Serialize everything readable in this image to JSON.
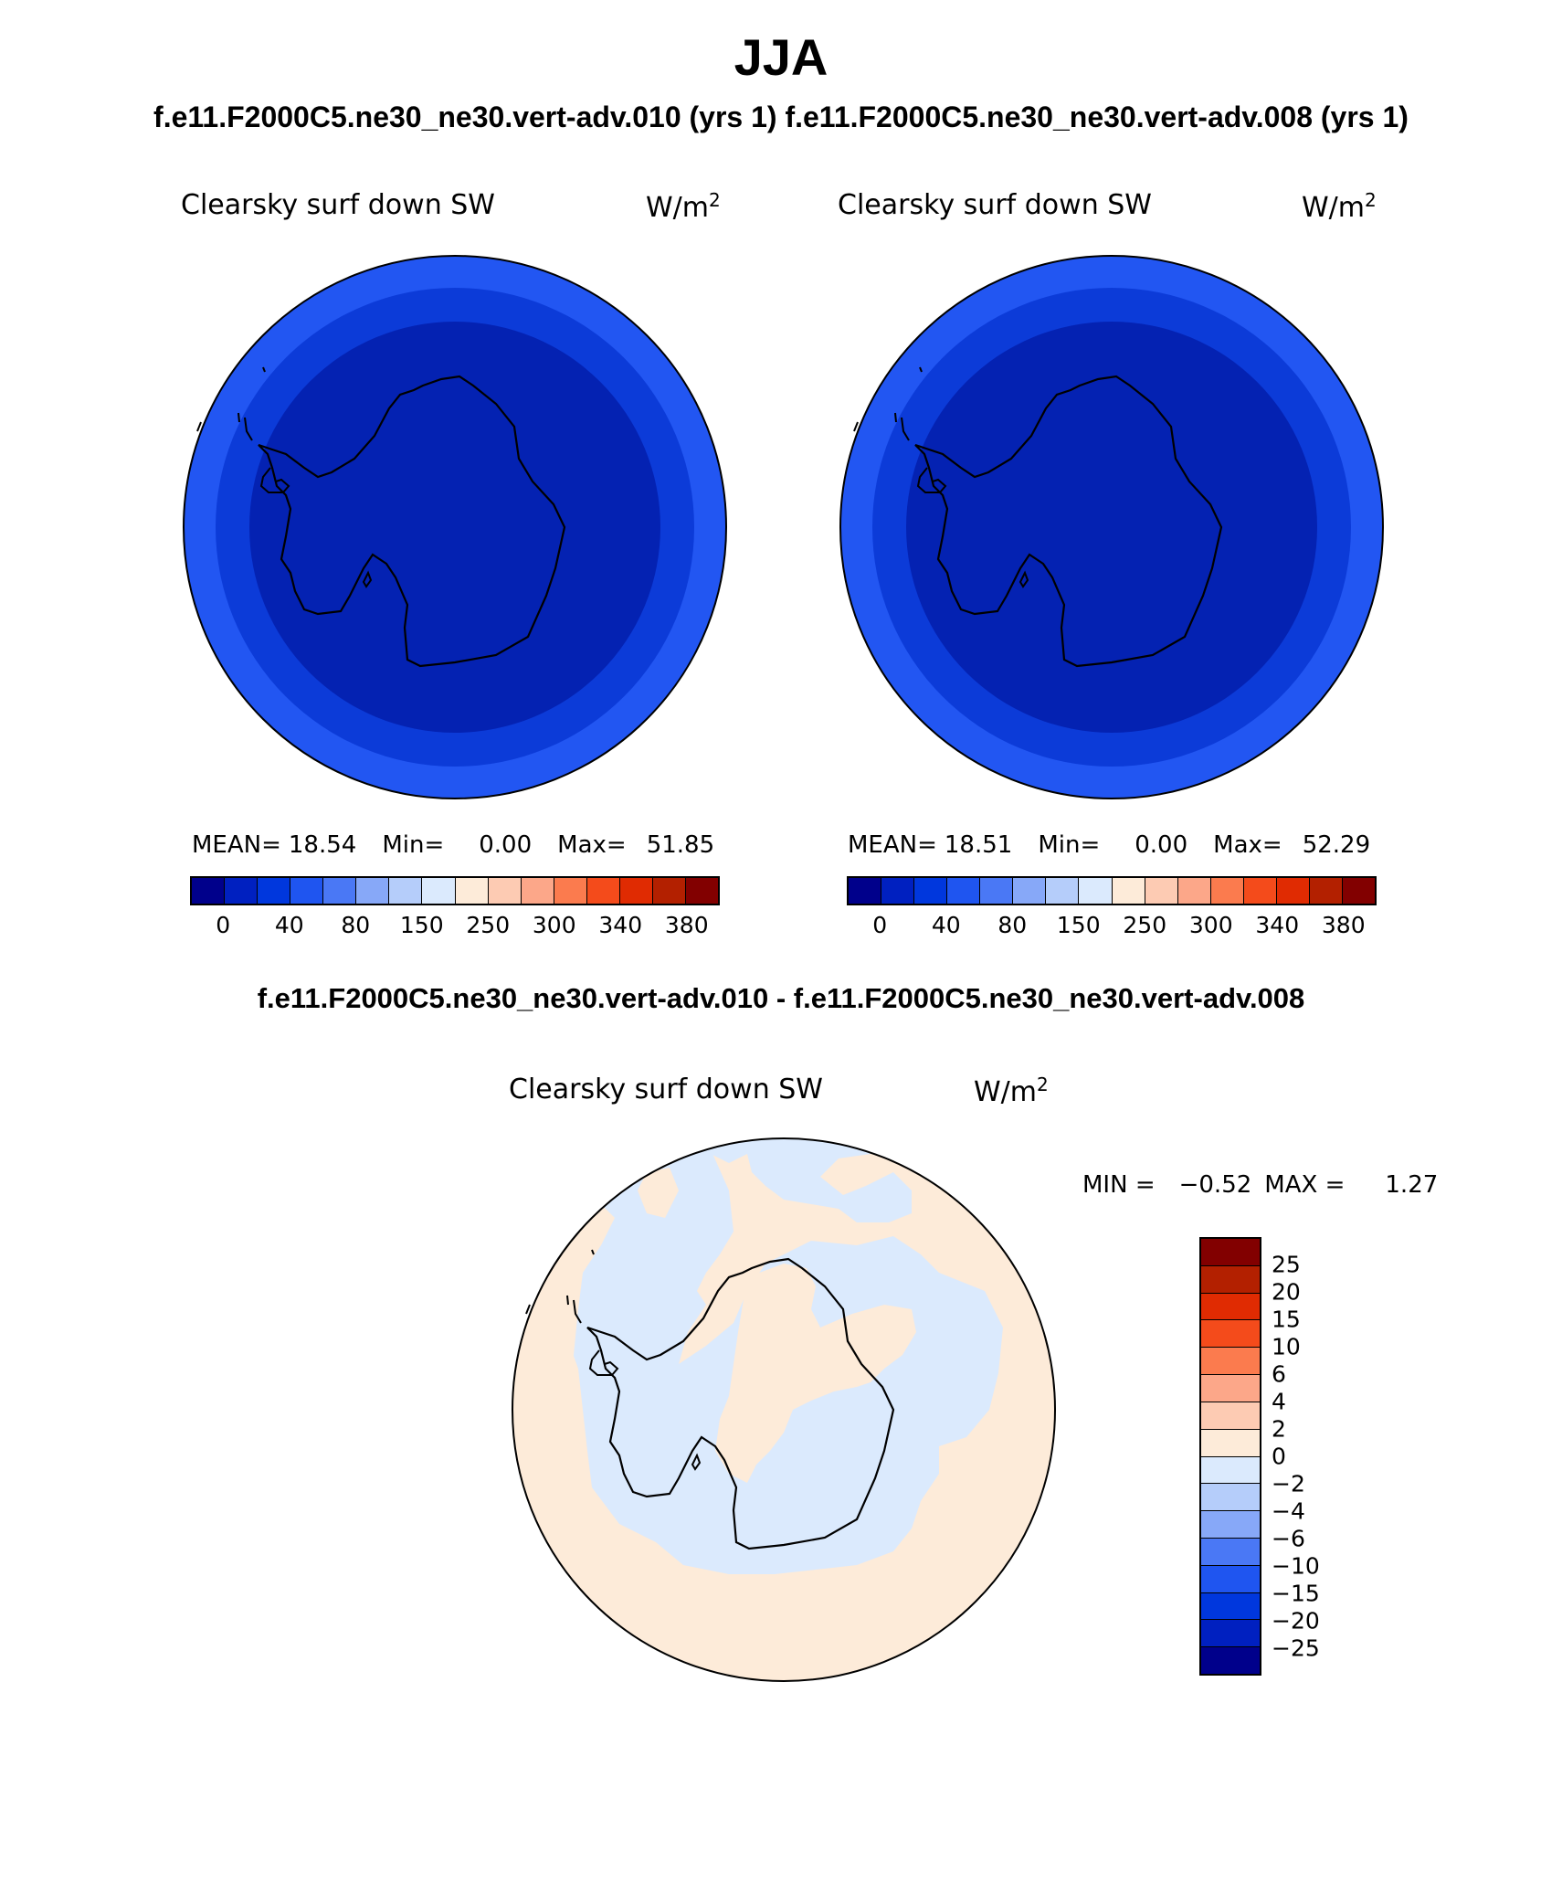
{
  "title": "JJA",
  "subtitle": "f.e11.F2000C5.ne30_ne30.vert-adv.010 (yrs 1) f.e11.F2000C5.ne30_ne30.vert-adv.008 (yrs 1)",
  "diff_title": "f.e11.F2000C5.ne30_ne30.vert-adv.010 - f.e11.F2000C5.ne30_ne30.vert-adv.008",
  "panels": [
    {
      "variable": "Clearsky surf down SW",
      "units": "W/m",
      "units_exp": "2",
      "mean_label": "MEAN=",
      "mean": "18.54",
      "min_label": "Min=",
      "min": "0.00",
      "max_label": "Max=",
      "max": "51.85"
    },
    {
      "variable": "Clearsky surf down SW",
      "units": "W/m",
      "units_exp": "2",
      "mean_label": "MEAN=",
      "mean": "18.51",
      "min_label": "Min=",
      "min": "0.00",
      "max_label": "Max=",
      "max": "52.29"
    }
  ],
  "diff_panel": {
    "variable": "Clearsky surf down SW",
    "units": "W/m",
    "units_exp": "2",
    "min_label": "MIN =",
    "min": "−0.52",
    "max_label": "MAX =",
    "max": "1.27"
  },
  "colorbar": {
    "colors": [
      "#00008b",
      "#0020c0",
      "#0037dd",
      "#1f55f0",
      "#4a78f5",
      "#87a8f8",
      "#b5cdfa",
      "#dbeafd",
      "#fdebd9",
      "#fdcbb3",
      "#fca789",
      "#fb7b4e",
      "#f44b1b",
      "#e02b02",
      "#b32000",
      "#820000"
    ],
    "ticks": [
      "0",
      "40",
      "80",
      "150",
      "250",
      "300",
      "340",
      "380"
    ]
  },
  "diff_colorbar": {
    "colors": [
      "#820000",
      "#b32000",
      "#e02b02",
      "#f44b1b",
      "#fb7b4e",
      "#fca789",
      "#fdcbb3",
      "#fdebd9",
      "#dbeafd",
      "#b5cdfa",
      "#87a8f8",
      "#4a78f5",
      "#1f55f0",
      "#0037dd",
      "#0020c0",
      "#00008b"
    ],
    "ticks": [
      "25",
      "20",
      "15",
      "10",
      "6",
      "4",
      "2",
      "0",
      "−2",
      "−4",
      "−6",
      "−10",
      "−15",
      "−20",
      "−25"
    ]
  },
  "map_colors": {
    "outer_ring": "#2256f2",
    "middle_ring": "#0c3bd8",
    "inner_disk": "#0422b2",
    "diff_positive": "#fdebd9",
    "diff_negative": "#dbeafd",
    "coastline": "#000000"
  }
}
